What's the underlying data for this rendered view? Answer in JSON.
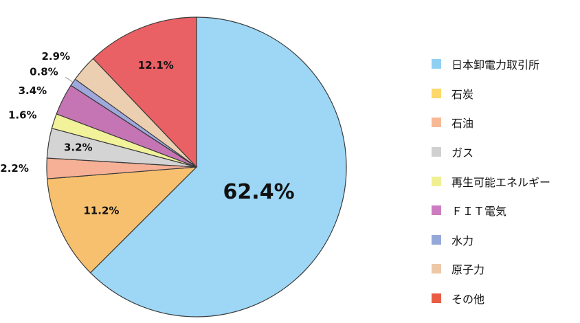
{
  "chart_data": {
    "type": "pie",
    "title": "",
    "categories": [
      "日本卸電力取引所",
      "石炭",
      "石油",
      "ガス",
      "再生可能エネルギー",
      "ＦＩＴ電気",
      "水力",
      "原子力",
      "その他"
    ],
    "values": [
      62.4,
      11.2,
      2.2,
      3.2,
      1.6,
      3.4,
      0.8,
      2.9,
      12.1
    ],
    "labels": [
      "62.4%",
      "11.2%",
      "2.2%",
      "3.2%",
      "1.6%",
      "3.4%",
      "0.8%",
      "2.9%",
      "12.1%"
    ],
    "slice_colors": [
      "#9dd7f5",
      "#f7c06f",
      "#f5b096",
      "#d4d4d4",
      "#f1f29a",
      "#c574b4",
      "#9ea8db",
      "#eccfb0",
      "#e96065"
    ],
    "legend_colors": [
      "#8fd0f2",
      "#fcd86a",
      "#f7b896",
      "#d0d0d0",
      "#f0f092",
      "#cc7cc0",
      "#96a8d8",
      "#ecc8a8",
      "#e85c44"
    ],
    "legend_position": "right",
    "start_angle_deg": 0,
    "direction": "clockwise"
  }
}
